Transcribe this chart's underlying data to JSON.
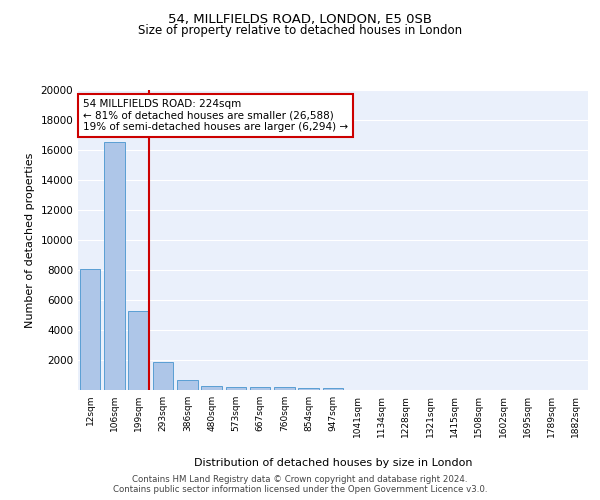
{
  "title": "54, MILLFIELDS ROAD, LONDON, E5 0SB",
  "subtitle": "Size of property relative to detached houses in London",
  "xlabel": "Distribution of detached houses by size in London",
  "ylabel": "Number of detached properties",
  "bar_color": "#aec6e8",
  "bar_edge_color": "#5a9fd4",
  "bg_color": "#eaf0fb",
  "grid_color": "#ffffff",
  "categories": [
    "12sqm",
    "106sqm",
    "199sqm",
    "293sqm",
    "386sqm",
    "480sqm",
    "573sqm",
    "667sqm",
    "760sqm",
    "854sqm",
    "947sqm",
    "1041sqm",
    "1134sqm",
    "1228sqm",
    "1321sqm",
    "1415sqm",
    "1508sqm",
    "1602sqm",
    "1695sqm",
    "1789sqm",
    "1882sqm"
  ],
  "values": [
    8100,
    16500,
    5300,
    1850,
    700,
    300,
    220,
    190,
    180,
    150,
    130,
    0,
    0,
    0,
    0,
    0,
    0,
    0,
    0,
    0,
    0
  ],
  "red_line_x": 2,
  "annotation_text": "54 MILLFIELDS ROAD: 224sqm\n← 81% of detached houses are smaller (26,588)\n19% of semi-detached houses are larger (6,294) →",
  "annotation_box_color": "#ffffff",
  "annotation_box_edge": "#cc0000",
  "red_line_color": "#cc0000",
  "footer": "Contains HM Land Registry data © Crown copyright and database right 2024.\nContains public sector information licensed under the Open Government Licence v3.0.",
  "ylim": [
    0,
    20000
  ],
  "yticks": [
    0,
    2000,
    4000,
    6000,
    8000,
    10000,
    12000,
    14000,
    16000,
    18000,
    20000
  ]
}
